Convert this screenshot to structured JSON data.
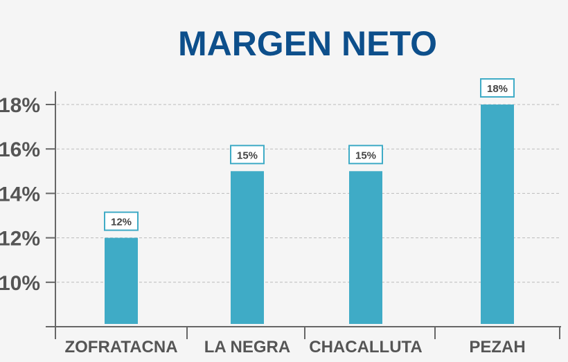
{
  "chart_data": {
    "type": "bar",
    "title": "MARGEN NETO",
    "xlabel": "",
    "ylabel": "",
    "categories": [
      "ZOFRATACNA",
      "LA NEGRA",
      "CHACALLUTA",
      "PEZAH"
    ],
    "values": [
      12,
      15,
      15,
      18
    ],
    "data_labels": [
      "12%",
      "15%",
      "15%",
      "18%"
    ],
    "ylim": [
      8,
      18
    ],
    "yticks": [
      10,
      12,
      14,
      16,
      18
    ],
    "ytick_labels": [
      "10%",
      "12%",
      "14%",
      "16%",
      "18%"
    ],
    "grid": true,
    "legend": "none",
    "colors": {
      "bar": "#3fabc6",
      "title": "#0d4f8b",
      "tick_text": "#555555",
      "axis": "#666666",
      "grid": "#bbbbbb",
      "label_border": "#3fabc6",
      "label_bg": "#ffffff",
      "label_text": "#444444",
      "background": "#f5f5f5"
    }
  }
}
